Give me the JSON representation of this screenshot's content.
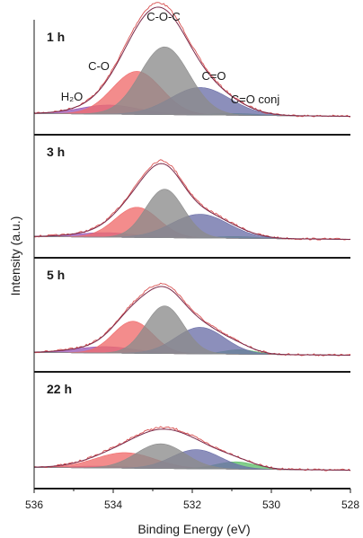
{
  "chart_data": {
    "type": "area",
    "xlabel": "Binding Energy (eV)",
    "ylabel": "Intensity (a.u.)",
    "xlim": [
      536,
      528
    ],
    "x_reversed": true,
    "x_ticks": [
      536,
      534,
      532,
      530,
      528
    ],
    "component_colors": {
      "H2O": "#9b59b6",
      "C-O": "#f06b6b",
      "C-O-C": "#8c8c8c",
      "C=O": "#6b6fa8",
      "C=O conj": "#5fbf6a"
    },
    "envelope_color": "#7a2a4a",
    "data_color": "#d85050",
    "panels": [
      {
        "label": "1 h",
        "components": [
          {
            "name": "H2O",
            "label": "H₂O",
            "center": 534.1,
            "height": 0.1,
            "width": 0.75
          },
          {
            "name": "C-O",
            "label": "C-O",
            "center": 533.4,
            "height": 0.47,
            "width": 0.62
          },
          {
            "name": "C-O-C",
            "label": "C-O-C",
            "center": 532.7,
            "height": 0.74,
            "width": 0.62
          },
          {
            "name": "C=O",
            "label": "C=O",
            "center": 531.8,
            "height": 0.3,
            "width": 0.75
          },
          {
            "name": "C=O conj",
            "label": "C=O conj",
            "center": 530.9,
            "height": 0.02,
            "width": 0.55
          }
        ]
      },
      {
        "label": "3 h",
        "components": [
          {
            "name": "H2O",
            "center": 534.2,
            "height": 0.05,
            "width": 0.75
          },
          {
            "name": "C-O",
            "center": 533.4,
            "height": 0.33,
            "width": 0.55
          },
          {
            "name": "C-O-C",
            "center": 532.7,
            "height": 0.53,
            "width": 0.48
          },
          {
            "name": "C=O",
            "center": 531.8,
            "height": 0.26,
            "width": 0.72
          },
          {
            "name": "C=O conj",
            "center": 530.9,
            "height": 0.02,
            "width": 0.55
          }
        ]
      },
      {
        "label": "5 h",
        "components": [
          {
            "name": "H2O",
            "center": 534.2,
            "height": 0.07,
            "width": 0.75
          },
          {
            "name": "C-O",
            "center": 533.5,
            "height": 0.35,
            "width": 0.5
          },
          {
            "name": "C-O-C",
            "center": 532.7,
            "height": 0.52,
            "width": 0.48
          },
          {
            "name": "C=O",
            "center": 531.8,
            "height": 0.29,
            "width": 0.62
          },
          {
            "name": "C=O conj",
            "center": 530.8,
            "height": 0.05,
            "width": 0.4
          }
        ]
      },
      {
        "label": "22 h",
        "components": [
          {
            "name": "H2O",
            "center": 534.3,
            "height": 0.02,
            "width": 0.75
          },
          {
            "name": "C-O",
            "center": 533.7,
            "height": 0.17,
            "width": 0.75
          },
          {
            "name": "C-O-C",
            "center": 532.8,
            "height": 0.27,
            "width": 0.62
          },
          {
            "name": "C=O",
            "center": 531.9,
            "height": 0.21,
            "width": 0.62
          },
          {
            "name": "C=O conj",
            "center": 530.9,
            "height": 0.08,
            "width": 0.5
          }
        ]
      }
    ]
  }
}
